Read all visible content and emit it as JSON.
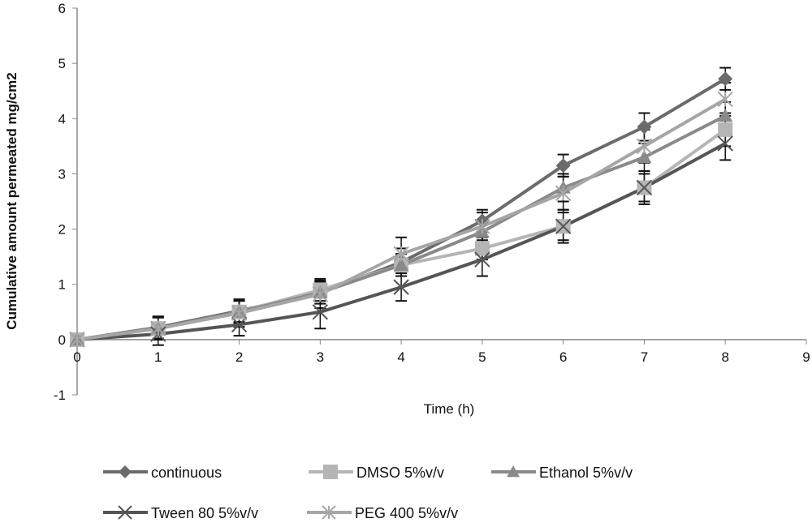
{
  "chart_data": {
    "type": "line",
    "title": "",
    "xlabel": "Time (h)",
    "ylabel": "Cumulative amount permeated mg/cm2",
    "xlim": [
      0,
      9
    ],
    "ylim": [
      -1,
      6
    ],
    "xticks": [
      0,
      1,
      2,
      3,
      4,
      5,
      6,
      7,
      8,
      9
    ],
    "yticks": [
      -1,
      0,
      1,
      2,
      3,
      4,
      5,
      6
    ],
    "grid": false,
    "legend_position": "bottom",
    "x": [
      0,
      1,
      2,
      3,
      4,
      5,
      6,
      7,
      8
    ],
    "series": [
      {
        "name": "continuous",
        "marker": "diamond",
        "color": "#6b6b6b",
        "values": [
          0,
          0.22,
          0.52,
          0.85,
          1.4,
          2.15,
          3.15,
          3.85,
          4.72
        ],
        "errors": [
          0,
          0.2,
          0.2,
          0.2,
          0.25,
          0.2,
          0.2,
          0.25,
          0.2
        ]
      },
      {
        "name": "DMSO 5%v/v",
        "marker": "square",
        "color": "#b5b5b5",
        "values": [
          0,
          0.2,
          0.5,
          0.9,
          1.35,
          1.65,
          2.05,
          2.75,
          3.8
        ],
        "errors": [
          0,
          0.2,
          0.2,
          0.2,
          0.2,
          0.2,
          0.25,
          0.25,
          0.3
        ]
      },
      {
        "name": "Ethanol 5%v/v",
        "marker": "triangle",
        "color": "#8a8a8a",
        "values": [
          0,
          0.2,
          0.5,
          0.85,
          1.35,
          1.95,
          2.75,
          3.3,
          4.05
        ],
        "errors": [
          0,
          0.2,
          0.2,
          0.2,
          0.2,
          0.2,
          0.25,
          0.25,
          0.25
        ]
      },
      {
        "name": "Tween 80 5%v/v",
        "marker": "x",
        "color": "#555555",
        "values": [
          0,
          0.1,
          0.27,
          0.5,
          0.95,
          1.45,
          2.05,
          2.75,
          3.55
        ],
        "errors": [
          0,
          0.2,
          0.2,
          0.3,
          0.25,
          0.3,
          0.3,
          0.3,
          0.3
        ]
      },
      {
        "name": "PEG 400 5%v/v",
        "marker": "asterisk",
        "color": "#a6a6a6",
        "values": [
          0,
          0.2,
          0.48,
          0.82,
          1.55,
          2.05,
          2.65,
          3.5,
          4.35
        ],
        "errors": [
          0,
          0.2,
          0.25,
          0.25,
          0.3,
          0.25,
          0.3,
          0.3,
          0.3
        ]
      }
    ]
  }
}
